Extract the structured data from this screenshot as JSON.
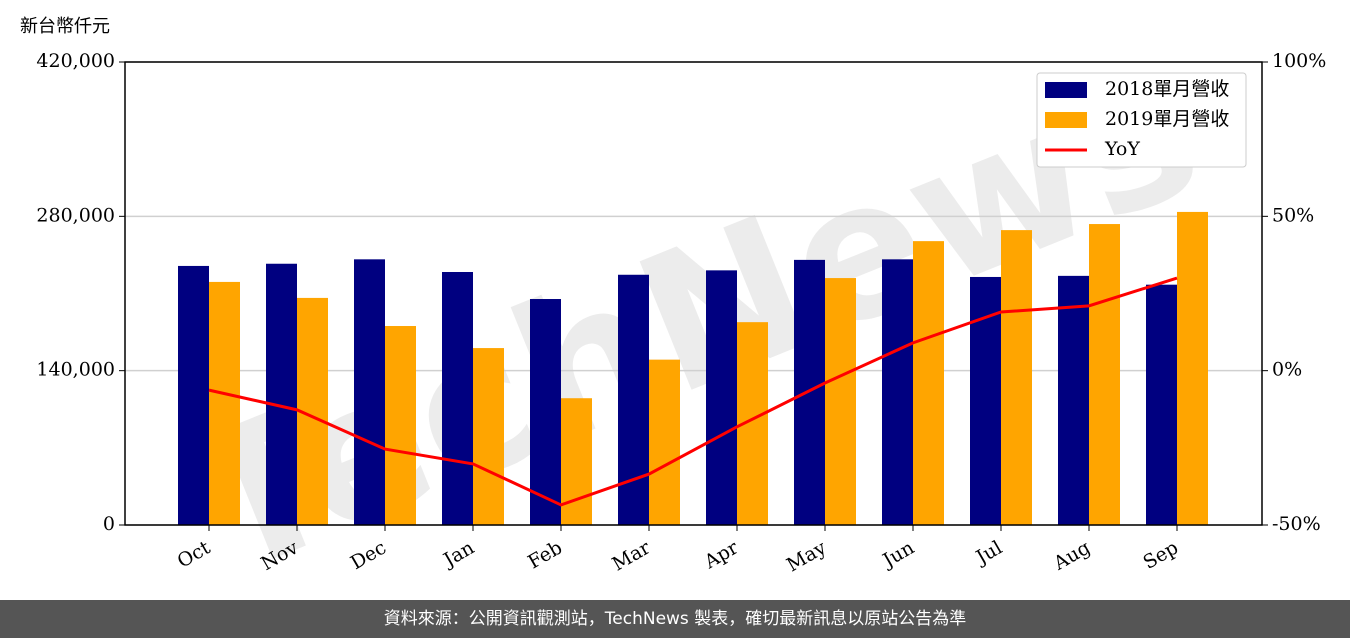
{
  "chart_data": {
    "type": "bar_line",
    "title": null,
    "watermark": "TechNews",
    "y_label": "新台幣仟元",
    "source": "資料來源：公開資訊觀測站，TechNews 製表，確切最新訊息以原站公告為準",
    "categories": [
      "Oct",
      "Nov",
      "Dec",
      "Jan",
      "Feb",
      "Mar",
      "Apr",
      "May",
      "Jun",
      "Jul",
      "Aug",
      "Sep"
    ],
    "series": [
      {
        "name": "2018單月營收",
        "color": "#000080",
        "values": [
          235000,
          237000,
          241000,
          229500,
          205000,
          227000,
          231000,
          240500,
          241000,
          225000,
          226000,
          218000
        ]
      },
      {
        "name": "2019單月營收",
        "color": "#ffa500",
        "values": [
          220500,
          206000,
          180500,
          160500,
          115000,
          150000,
          184000,
          224000,
          257500,
          267500,
          273000,
          284000
        ]
      },
      {
        "name": "YoY",
        "color": "#ff0000",
        "axis": "y2",
        "values": [
          -6.3,
          -12.7,
          -25.4,
          -30.2,
          -43.5,
          -33.5,
          -18.2,
          -4.0,
          9.0,
          19.0,
          21.0,
          30.0
        ]
      }
    ],
    "ylim": [
      0,
      420000
    ],
    "yticks": [
      0,
      {
        "value": 140000,
        "label": "140,000"
      },
      {
        "value": 280000,
        "label": "280,000"
      },
      {
        "value": 420000,
        "label": "420,000"
      }
    ],
    "y2lim": [
      -50,
      100
    ],
    "y2ticks": [
      {
        "value": -50,
        "label": "-50%"
      },
      {
        "value": 0,
        "label": "0%"
      },
      {
        "value": 50,
        "label": "50%"
      },
      {
        "value": 100,
        "label": "100%"
      }
    ],
    "grid": true,
    "legend": "upper right"
  }
}
